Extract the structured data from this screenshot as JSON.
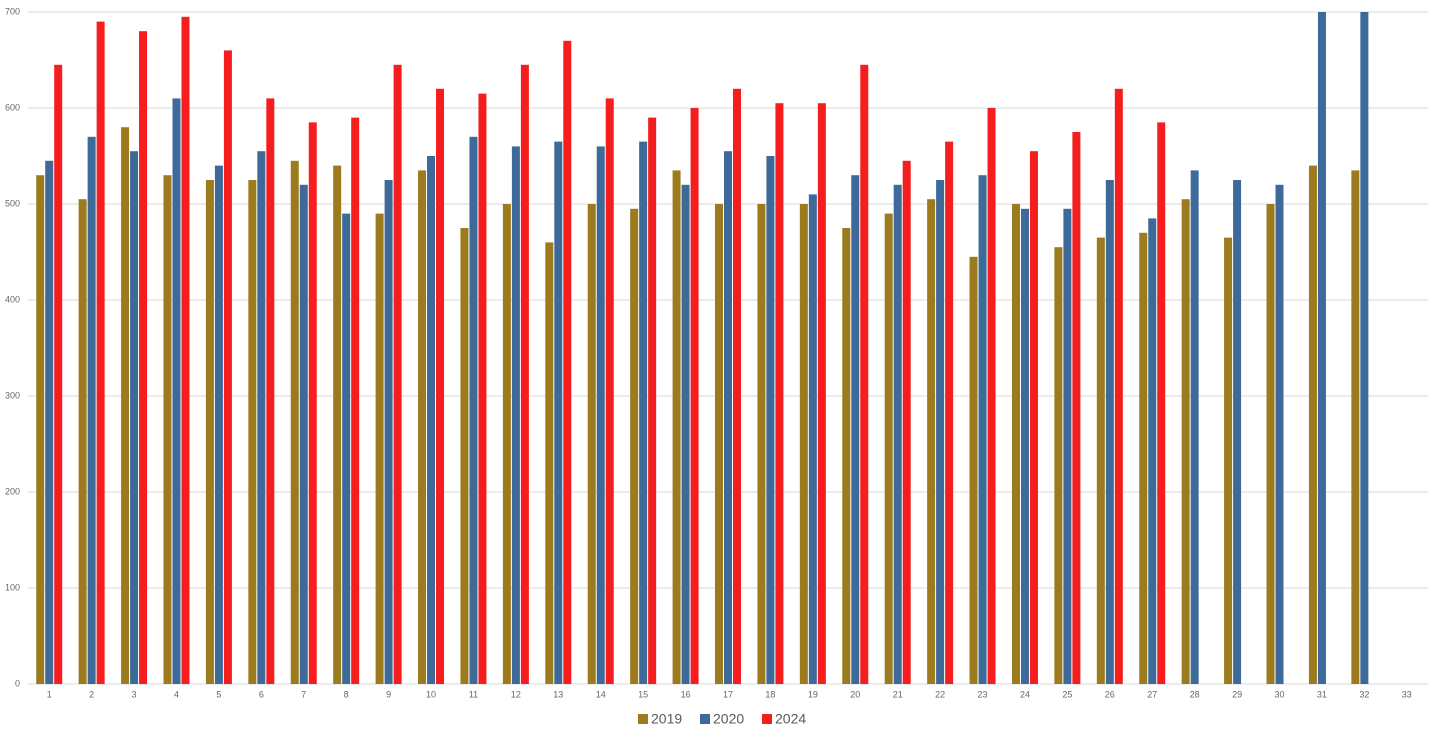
{
  "chart_data": {
    "type": "bar",
    "categories": [
      "1",
      "2",
      "3",
      "4",
      "5",
      "6",
      "7",
      "8",
      "9",
      "10",
      "11",
      "12",
      "13",
      "14",
      "15",
      "16",
      "17",
      "18",
      "19",
      "20",
      "21",
      "22",
      "23",
      "24",
      "25",
      "26",
      "27",
      "28",
      "29",
      "30",
      "31",
      "32",
      "33"
    ],
    "series": [
      {
        "name": "2019",
        "color": "#9c7b1e",
        "values": [
          530,
          505,
          580,
          530,
          525,
          525,
          545,
          540,
          490,
          535,
          475,
          500,
          460,
          500,
          495,
          535,
          500,
          500,
          500,
          475,
          490,
          505,
          445,
          500,
          455,
          465,
          470,
          505,
          465,
          500,
          540,
          535,
          null
        ]
      },
      {
        "name": "2020",
        "color": "#3d6a99",
        "values": [
          545,
          570,
          555,
          610,
          540,
          555,
          520,
          490,
          525,
          550,
          570,
          560,
          565,
          560,
          565,
          520,
          555,
          550,
          510,
          530,
          520,
          525,
          530,
          495,
          495,
          525,
          485,
          535,
          525,
          520,
          710,
          730,
          null
        ]
      },
      {
        "name": "2024",
        "color": "#f51d1d",
        "values": [
          645,
          690,
          680,
          695,
          660,
          610,
          585,
          590,
          645,
          620,
          615,
          645,
          670,
          610,
          590,
          600,
          620,
          605,
          605,
          645,
          545,
          565,
          600,
          555,
          575,
          620,
          585,
          null,
          null,
          null,
          null,
          null,
          null
        ]
      }
    ],
    "ylim": [
      0,
      700
    ],
    "yticks": [
      0,
      100,
      200,
      300,
      400,
      500,
      600,
      700
    ],
    "grid": true,
    "legend": "bottom"
  }
}
